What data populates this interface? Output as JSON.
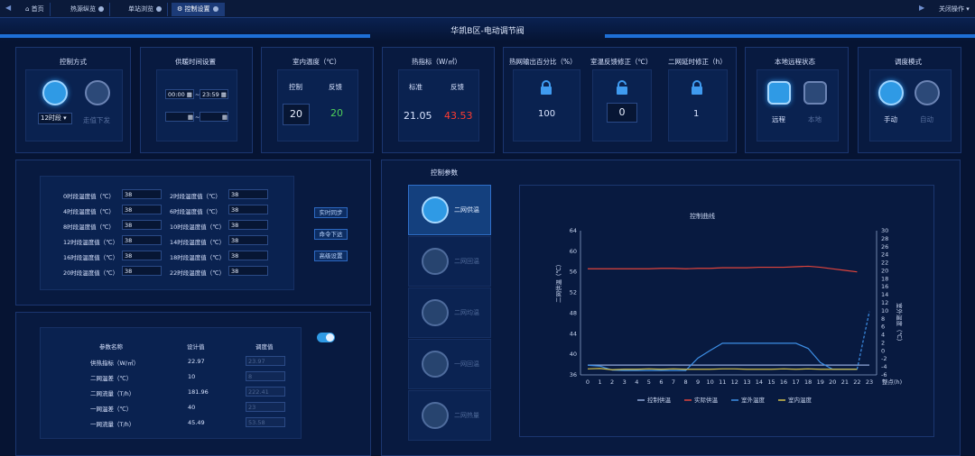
{
  "tabs": [
    "首页",
    "热源纵览",
    "单站浏览",
    "控制设置"
  ],
  "close_action": "关闭操作",
  "title": "华凯B区-电动调节阀",
  "control_mode": {
    "title": "控制方式",
    "select": "12时段",
    "dispatch": "走值下发"
  },
  "supply_time": {
    "title": "供暖时间设置",
    "start": "00:00",
    "end": "23:59",
    "sep": "~"
  },
  "indoor_temp": {
    "title": "室内温度（℃）",
    "col1": "控制",
    "col2": "反馈",
    "val1": "20",
    "val2": "20"
  },
  "heat_index": {
    "title": "热指标（W/㎡）",
    "col1": "标准",
    "col2": "反馈",
    "val1": "21.05",
    "val2": "43.53"
  },
  "output": {
    "t1": "热网输出百分比（%）",
    "t2": "室温反馈修正（℃）",
    "t3": "二网延时修正（h）",
    "v1": "100",
    "v2": "0",
    "v3": "1"
  },
  "remote": {
    "title": "本地远程状态",
    "on": "远程",
    "off": "本地"
  },
  "mode": {
    "title": "调度模式",
    "on": "手动",
    "off": "自动"
  },
  "segments": [
    {
      "l": "0时段温度值（℃）",
      "v": "38"
    },
    {
      "l": "2时段温度值（℃）",
      "v": "38"
    },
    {
      "l": "4时段温度值（℃）",
      "v": "38"
    },
    {
      "l": "6时段温度值（℃）",
      "v": "38"
    },
    {
      "l": "8时段温度值（℃）",
      "v": "38"
    },
    {
      "l": "10时段温度值（℃）",
      "v": "38"
    },
    {
      "l": "12时段温度值（℃）",
      "v": "38"
    },
    {
      "l": "14时段温度值（℃）",
      "v": "38"
    },
    {
      "l": "16时段温度值（℃）",
      "v": "38"
    },
    {
      "l": "18时段温度值（℃）",
      "v": "38"
    },
    {
      "l": "20时段温度值（℃）",
      "v": "38"
    },
    {
      "l": "22时段温度值（℃）",
      "v": "38"
    }
  ],
  "seg_buttons": [
    "实时同步",
    "命令下达",
    "高级设置"
  ],
  "params": {
    "headers": [
      "参数名称",
      "设计值",
      "调度值"
    ],
    "rows": [
      {
        "name": "供热指标（W/㎡）",
        "design": "22.97",
        "sched": "23.97"
      },
      {
        "name": "二网温差（℃）",
        "design": "10",
        "sched": "8"
      },
      {
        "name": "二网流量（T/h）",
        "design": "181.96",
        "sched": "222.41"
      },
      {
        "name": "一网温差（℃）",
        "design": "40",
        "sched": "23"
      },
      {
        "name": "一网流量（T/h）",
        "design": "45.49",
        "sched": "53.58"
      }
    ]
  },
  "ctrl_params_title": "控制参数",
  "side_items": [
    "二网供温",
    "二网回温",
    "二网均温",
    "一网回温",
    "二网热量"
  ],
  "chart_data": {
    "type": "line",
    "title": "控制曲线",
    "x": [
      0,
      1,
      2,
      3,
      4,
      5,
      6,
      7,
      8,
      9,
      10,
      11,
      12,
      13,
      14,
      15,
      16,
      17,
      18,
      19,
      20,
      21,
      22,
      23
    ],
    "xlabel": "整点(h)",
    "ylabel": "二网供温（℃）",
    "y2label": "室外温度（℃）",
    "ylim": [
      36,
      64
    ],
    "y2lim": [
      -6,
      30
    ],
    "yticks": [
      36,
      40,
      44,
      48,
      52,
      56,
      60,
      64
    ],
    "y2ticks": [
      -6,
      -4,
      -2,
      0,
      2,
      4,
      6,
      8,
      10,
      12,
      14,
      16,
      18,
      20,
      22,
      24,
      26,
      28,
      30
    ],
    "series": [
      {
        "name": "控制供温",
        "color": "#8fa8d8",
        "axis": "left",
        "values": [
          37.9,
          37.9,
          37.9,
          37.9,
          37.9,
          37.9,
          37.9,
          37.9,
          37.9,
          37.9,
          37.9,
          37.9,
          37.9,
          37.9,
          37.9,
          37.9,
          37.9,
          37.9,
          37.9,
          37.9,
          37.9,
          37.9,
          37.9,
          37.9
        ]
      },
      {
        "name": "实际供温",
        "color": "#e0443c",
        "axis": "left",
        "values": [
          56.6,
          56.6,
          56.6,
          56.6,
          56.6,
          56.6,
          56.7,
          56.7,
          56.6,
          56.7,
          56.7,
          56.8,
          56.8,
          56.8,
          56.9,
          56.9,
          56.9,
          57.0,
          57.1,
          56.9,
          56.6,
          56.3,
          56.0,
          null
        ]
      },
      {
        "name": "室外温度",
        "color": "#3d8fe6",
        "axis": "right",
        "values": [
          -3.6,
          -3.8,
          -4.8,
          -4.9,
          -4.9,
          -4.9,
          -4.9,
          -4.9,
          -4.9,
          -1.8,
          0.1,
          1.9,
          1.9,
          1.9,
          1.9,
          1.9,
          1.9,
          1.9,
          0.6,
          -2.9,
          -4.6,
          -4.6,
          -4.6,
          9.8
        ]
      },
      {
        "name": "室内温度",
        "color": "#d4c14a",
        "axis": "right",
        "values": [
          -4.5,
          -4.4,
          -4.7,
          -4.6,
          -4.6,
          -4.5,
          -4.6,
          -4.5,
          -4.6,
          -4.6,
          -4.6,
          -4.5,
          -4.5,
          -4.6,
          -4.6,
          -4.6,
          -4.5,
          -4.6,
          -4.5,
          -4.6,
          -4.6,
          -4.6,
          -4.6,
          null
        ]
      }
    ],
    "legend": "bottom"
  }
}
